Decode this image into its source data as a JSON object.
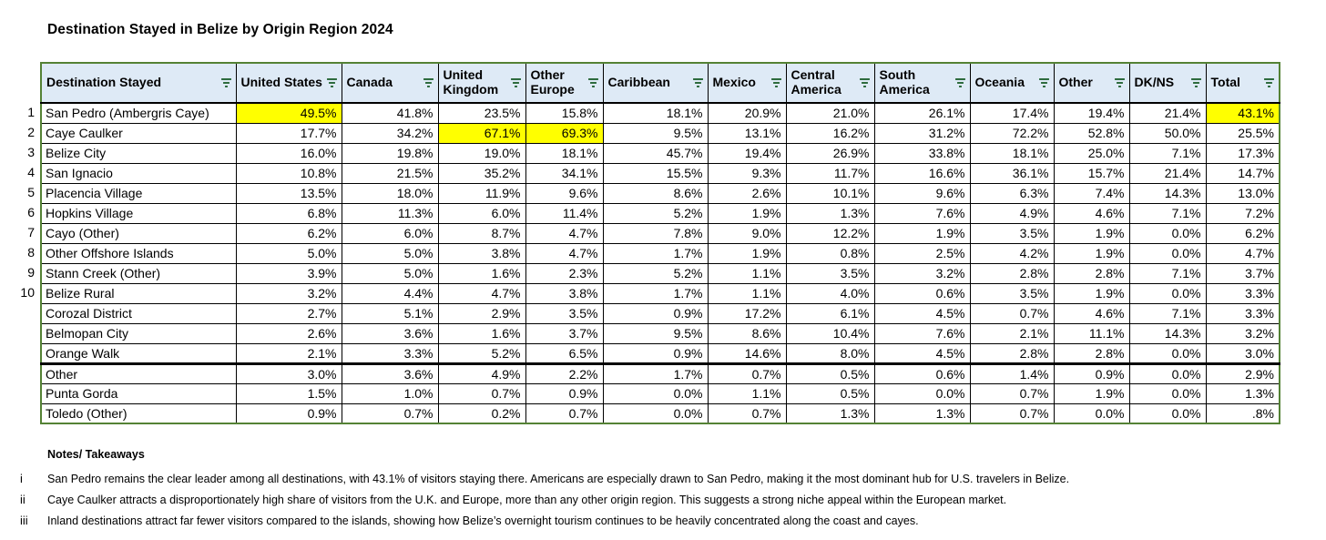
{
  "title": "Destination Stayed in Belize by Origin Region 2024",
  "colors": {
    "header_bg": "#DEEAF6",
    "highlight": "#FFFF00",
    "outer_border": "#548235",
    "filter_icon": "#2E6B3E"
  },
  "table": {
    "columns": [
      {
        "label": "Destination Stayed"
      },
      {
        "label": "United States"
      },
      {
        "label": "Canada"
      },
      {
        "label": "United Kingdom"
      },
      {
        "label": "Other Europe"
      },
      {
        "label": "Caribbean"
      },
      {
        "label": "Mexico"
      },
      {
        "label": "Central America"
      },
      {
        "label": "South America"
      },
      {
        "label": "Oceania"
      },
      {
        "label": "Other"
      },
      {
        "label": "DK/NS"
      },
      {
        "label": "Total"
      }
    ],
    "rows": [
      {
        "num": "1",
        "destination": "San Pedro (Ambergris Caye)",
        "values": [
          "49.5%",
          "41.8%",
          "23.5%",
          "15.8%",
          "18.1%",
          "20.9%",
          "21.0%",
          "26.1%",
          "17.4%",
          "19.4%",
          "21.4%",
          "43.1%"
        ],
        "highlight_cols": [
          0,
          11
        ],
        "group_start": false
      },
      {
        "num": "2",
        "destination": "Caye Caulker",
        "values": [
          "17.7%",
          "34.2%",
          "67.1%",
          "69.3%",
          "9.5%",
          "13.1%",
          "16.2%",
          "31.2%",
          "72.2%",
          "52.8%",
          "50.0%",
          "25.5%"
        ],
        "highlight_cols": [
          2,
          3
        ],
        "group_start": false
      },
      {
        "num": "3",
        "destination": "Belize City",
        "values": [
          "16.0%",
          "19.8%",
          "19.0%",
          "18.1%",
          "45.7%",
          "19.4%",
          "26.9%",
          "33.8%",
          "18.1%",
          "25.0%",
          "7.1%",
          "17.3%"
        ],
        "highlight_cols": [],
        "group_start": false
      },
      {
        "num": "4",
        "destination": "San Ignacio",
        "values": [
          "10.8%",
          "21.5%",
          "35.2%",
          "34.1%",
          "15.5%",
          "9.3%",
          "11.7%",
          "16.6%",
          "36.1%",
          "15.7%",
          "21.4%",
          "14.7%"
        ],
        "highlight_cols": [],
        "group_start": false
      },
      {
        "num": "5",
        "destination": "Placencia Village",
        "values": [
          "13.5%",
          "18.0%",
          "11.9%",
          "9.6%",
          "8.6%",
          "2.6%",
          "10.1%",
          "9.6%",
          "6.3%",
          "7.4%",
          "14.3%",
          "13.0%"
        ],
        "highlight_cols": [],
        "group_start": false
      },
      {
        "num": "6",
        "destination": "Hopkins Village",
        "values": [
          "6.8%",
          "11.3%",
          "6.0%",
          "11.4%",
          "5.2%",
          "1.9%",
          "1.3%",
          "7.6%",
          "4.9%",
          "4.6%",
          "7.1%",
          "7.2%"
        ],
        "highlight_cols": [],
        "group_start": false
      },
      {
        "num": "7",
        "destination": "Cayo (Other)",
        "values": [
          "6.2%",
          "6.0%",
          "8.7%",
          "4.7%",
          "7.8%",
          "9.0%",
          "12.2%",
          "1.9%",
          "3.5%",
          "1.9%",
          "0.0%",
          "6.2%"
        ],
        "highlight_cols": [],
        "group_start": false
      },
      {
        "num": "8",
        "destination": "Other Offshore Islands",
        "values": [
          "5.0%",
          "5.0%",
          "3.8%",
          "4.7%",
          "1.7%",
          "1.9%",
          "0.8%",
          "2.5%",
          "4.2%",
          "1.9%",
          "0.0%",
          "4.7%"
        ],
        "highlight_cols": [],
        "group_start": false
      },
      {
        "num": "9",
        "destination": "Stann Creek (Other)",
        "values": [
          "3.9%",
          "5.0%",
          "1.6%",
          "2.3%",
          "5.2%",
          "1.1%",
          "3.5%",
          "3.2%",
          "2.8%",
          "2.8%",
          "7.1%",
          "3.7%"
        ],
        "highlight_cols": [],
        "group_start": false
      },
      {
        "num": "10",
        "destination": "Belize Rural",
        "values": [
          "3.2%",
          "4.4%",
          "4.7%",
          "3.8%",
          "1.7%",
          "1.1%",
          "4.0%",
          "0.6%",
          "3.5%",
          "1.9%",
          "0.0%",
          "3.3%"
        ],
        "highlight_cols": [],
        "group_start": false
      },
      {
        "num": "",
        "destination": "Corozal District",
        "values": [
          "2.7%",
          "5.1%",
          "2.9%",
          "3.5%",
          "0.9%",
          "17.2%",
          "6.1%",
          "4.5%",
          "0.7%",
          "4.6%",
          "7.1%",
          "3.3%"
        ],
        "highlight_cols": [],
        "group_start": false
      },
      {
        "num": "",
        "destination": "Belmopan City",
        "values": [
          "2.6%",
          "3.6%",
          "1.6%",
          "3.7%",
          "9.5%",
          "8.6%",
          "10.4%",
          "7.6%",
          "2.1%",
          "11.1%",
          "14.3%",
          "3.2%"
        ],
        "highlight_cols": [],
        "group_start": false
      },
      {
        "num": "",
        "destination": "Orange Walk",
        "values": [
          "2.1%",
          "3.3%",
          "5.2%",
          "6.5%",
          "0.9%",
          "14.6%",
          "8.0%",
          "4.5%",
          "2.8%",
          "2.8%",
          "0.0%",
          "3.0%"
        ],
        "highlight_cols": [],
        "group_start": false
      },
      {
        "num": "",
        "destination": "Other",
        "values": [
          "3.0%",
          "3.6%",
          "4.9%",
          "2.2%",
          "1.7%",
          "0.7%",
          "0.5%",
          "0.6%",
          "1.4%",
          "0.9%",
          "0.0%",
          "2.9%"
        ],
        "highlight_cols": [],
        "group_start": true
      },
      {
        "num": "",
        "destination": "Punta Gorda",
        "values": [
          "1.5%",
          "1.0%",
          "0.7%",
          "0.9%",
          "0.0%",
          "1.1%",
          "0.5%",
          "0.0%",
          "0.7%",
          "1.9%",
          "0.0%",
          "1.3%"
        ],
        "highlight_cols": [],
        "group_start": false
      },
      {
        "num": "",
        "destination": "Toledo (Other)",
        "values": [
          "0.9%",
          "0.7%",
          "0.2%",
          "0.7%",
          "0.0%",
          "0.7%",
          "1.3%",
          "1.3%",
          "0.7%",
          "0.0%",
          "0.0%",
          ".8%"
        ],
        "highlight_cols": [],
        "group_start": false
      }
    ]
  },
  "notes": {
    "heading": "Notes/ Takeaways",
    "items": [
      {
        "marker": "i",
        "text": "San Pedro remains the clear leader among all destinations, with 43.1% of visitors staying there. Americans are especially drawn to San Pedro, making it the most dominant hub for U.S. travelers in Belize."
      },
      {
        "marker": "ii",
        "text": "Caye Caulker attracts a disproportionately high share of visitors from the U.K. and Europe, more than any other origin region. This suggests a strong niche appeal within the European market."
      },
      {
        "marker": "iii",
        "text": "Inland destinations attract far fewer visitors compared to the islands, showing how Belize’s overnight tourism continues to be heavily concentrated along the coast and cayes."
      }
    ]
  }
}
